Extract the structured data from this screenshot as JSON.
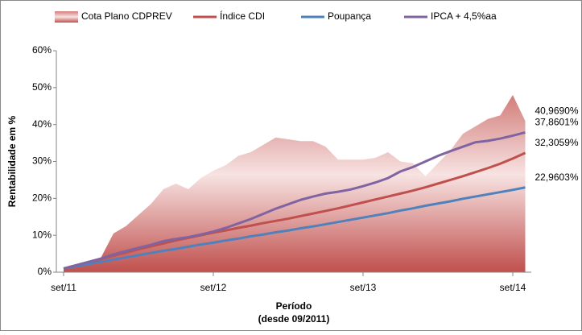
{
  "chart_data": {
    "type": "line",
    "xlabel": [
      "Período",
      "(desde 09/2011)"
    ],
    "ylabel": "Rentabilidade em %",
    "categories": [
      "set/11",
      null,
      null,
      null,
      null,
      null,
      null,
      null,
      null,
      null,
      null,
      null,
      "set/12",
      null,
      null,
      null,
      null,
      null,
      null,
      null,
      null,
      null,
      null,
      null,
      "set/13",
      null,
      null,
      null,
      null,
      null,
      null,
      null,
      null,
      null,
      null,
      null,
      "set/14",
      null
    ],
    "ylim": [
      0,
      60
    ],
    "yticks": [
      {
        "value": 0,
        "label": "0%"
      },
      {
        "value": 10,
        "label": "10%"
      },
      {
        "value": 20,
        "label": "20%"
      },
      {
        "value": 30,
        "label": "30%"
      },
      {
        "value": 40,
        "label": "40%"
      },
      {
        "value": 50,
        "label": "50%"
      },
      {
        "value": 60,
        "label": "60%"
      }
    ],
    "legend": "top",
    "series": [
      {
        "name": "Cota Plano CDPREV",
        "kind": "area",
        "color": "#c0504d",
        "values": [
          1,
          2,
          3,
          4,
          10.5,
          12.5,
          15.5,
          18.5,
          22.5,
          24,
          22.5,
          25.5,
          27.5,
          29,
          31.5,
          32.5,
          34.5,
          36.5,
          36,
          35.5,
          35.5,
          34,
          30.5,
          30.5,
          30.5,
          31,
          32.5,
          30,
          29.5,
          26,
          29.5,
          33,
          37.5,
          39.5,
          41.5,
          42.5,
          48,
          40.969
        ],
        "value_labels": [
          null,
          null,
          null,
          null,
          null,
          null,
          null,
          null,
          null,
          null,
          null,
          null,
          null,
          null,
          null,
          null,
          null,
          null,
          null,
          null,
          null,
          null,
          null,
          null,
          null,
          null,
          null,
          null,
          null,
          null,
          null,
          null,
          null,
          null,
          null,
          null,
          null,
          "40,9690%"
        ]
      },
      {
        "name": "Índice CDI",
        "kind": "line",
        "color": "#c0504d",
        "values": [
          1.0,
          1.8,
          2.7,
          3.6,
          4.5,
          5.3,
          6.2,
          7.0,
          7.8,
          8.6,
          9.3,
          10.0,
          10.7,
          11.3,
          12.0,
          12.6,
          13.3,
          13.9,
          14.5,
          15.2,
          15.9,
          16.6,
          17.3,
          18.1,
          18.9,
          19.7,
          20.5,
          21.3,
          22.1,
          23.0,
          24.0,
          25.0,
          26.0,
          27.1,
          28.2,
          29.4,
          30.8,
          32.3059
        ],
        "value_labels": [
          null,
          null,
          null,
          null,
          null,
          null,
          null,
          null,
          null,
          null,
          null,
          null,
          null,
          null,
          null,
          null,
          null,
          null,
          null,
          null,
          null,
          null,
          null,
          null,
          null,
          null,
          null,
          null,
          null,
          null,
          null,
          null,
          null,
          null,
          null,
          null,
          null,
          "32,3059%"
        ]
      },
      {
        "name": "Poupança",
        "kind": "line",
        "color": "#4f81bd",
        "values": [
          1.0,
          1.6,
          2.2,
          2.8,
          3.4,
          4.0,
          4.6,
          5.2,
          5.8,
          6.3,
          6.9,
          7.5,
          8.0,
          8.6,
          9.1,
          9.7,
          10.2,
          10.8,
          11.3,
          11.9,
          12.4,
          13.0,
          13.6,
          14.2,
          14.8,
          15.4,
          16.0,
          16.7,
          17.3,
          18.0,
          18.6,
          19.2,
          19.9,
          20.5,
          21.1,
          21.7,
          22.3,
          22.9603
        ],
        "value_labels": [
          null,
          null,
          null,
          null,
          null,
          null,
          null,
          null,
          null,
          null,
          null,
          null,
          null,
          null,
          null,
          null,
          null,
          null,
          null,
          null,
          null,
          null,
          null,
          null,
          null,
          null,
          null,
          null,
          null,
          null,
          null,
          null,
          null,
          null,
          null,
          null,
          null,
          "22,9603%"
        ]
      },
      {
        "name": "IPCA + 4,5%aa",
        "kind": "line",
        "color": "#8064a2",
        "values": [
          1.0,
          1.9,
          2.8,
          3.7,
          4.8,
          5.7,
          6.6,
          7.4,
          8.4,
          9.0,
          9.5,
          10.2,
          11.0,
          12.0,
          13.2,
          14.4,
          15.8,
          17.2,
          18.4,
          19.6,
          20.5,
          21.3,
          21.8,
          22.4,
          23.3,
          24.3,
          25.5,
          27.3,
          28.5,
          30.0,
          31.5,
          32.8,
          34.0,
          35.2,
          35.6,
          36.2,
          37.0,
          37.8601
        ],
        "value_labels": [
          null,
          null,
          null,
          null,
          null,
          null,
          null,
          null,
          null,
          null,
          null,
          null,
          null,
          null,
          null,
          null,
          null,
          null,
          null,
          null,
          null,
          null,
          null,
          null,
          null,
          null,
          null,
          null,
          null,
          null,
          null,
          null,
          null,
          null,
          null,
          null,
          null,
          "37,8601%"
        ]
      }
    ]
  }
}
